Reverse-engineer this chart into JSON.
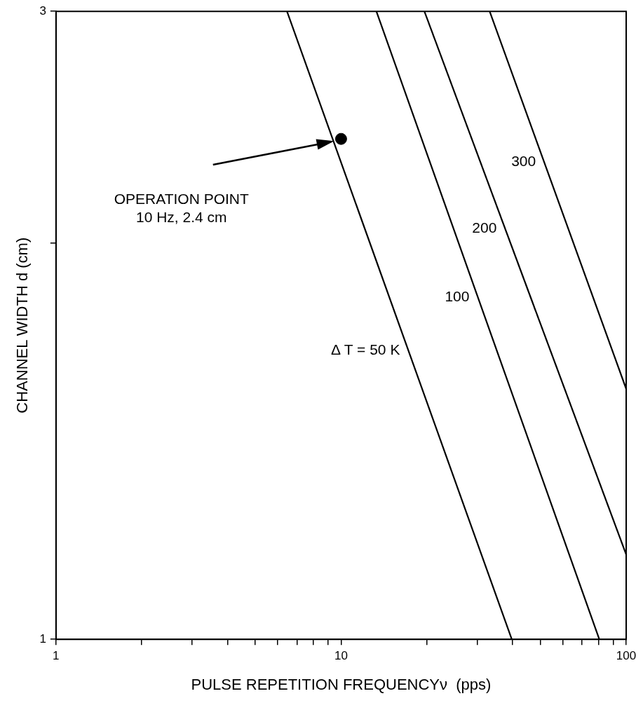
{
  "chart_data": {
    "type": "line",
    "xlabel": "PULSE REPETITION FREQUENCYν  (pps)",
    "ylabel": "CHANNEL WIDTH d (cm)",
    "log": "xy",
    "grid": false,
    "legend": false,
    "xlim": [
      1,
      100
    ],
    "ylim": [
      1,
      3
    ],
    "xticks": [
      1,
      {
        "value": 2,
        "label": null
      },
      {
        "value": 3,
        "label": null
      },
      {
        "value": 4,
        "label": null
      },
      {
        "value": 5,
        "label": null
      },
      {
        "value": 6,
        "label": null
      },
      {
        "value": 7,
        "label": null
      },
      {
        "value": 8,
        "label": null
      },
      {
        "value": 9,
        "label": null
      },
      10,
      {
        "value": 20,
        "label": null
      },
      {
        "value": 30,
        "label": null
      },
      {
        "value": 40,
        "label": null
      },
      {
        "value": 50,
        "label": null
      },
      {
        "value": 60,
        "label": null
      },
      {
        "value": 70,
        "label": null
      },
      {
        "value": 80,
        "label": null
      },
      {
        "value": 90,
        "label": null
      },
      100
    ],
    "yticks": [
      1,
      {
        "value": 2,
        "label": null
      },
      3
    ],
    "series": [
      {
        "type": "line",
        "name": "Δ T = 50 K",
        "color": "#000000",
        "x": [
          6.46,
          39.7
        ],
        "values": [
          3,
          1
        ]
      },
      {
        "type": "line",
        "name": "100",
        "color": "#000000",
        "x": [
          13.3,
          80.5
        ],
        "values": [
          3,
          1
        ]
      },
      {
        "type": "line",
        "name": "200",
        "color": "#000000",
        "x": [
          19.6,
          100
        ],
        "values": [
          3,
          1.16
        ]
      },
      {
        "type": "line",
        "name": "300",
        "color": "#000000",
        "x": [
          33.2,
          100
        ],
        "values": [
          3,
          1.55
        ]
      },
      {
        "type": "scatter",
        "marker": "circle",
        "color": "#000000",
        "x": [
          10
        ],
        "values": [
          2.4
        ]
      }
    ],
    "annotations": [
      "OPERATION POINT\n10 Hz, 2.4 cm"
    ]
  }
}
